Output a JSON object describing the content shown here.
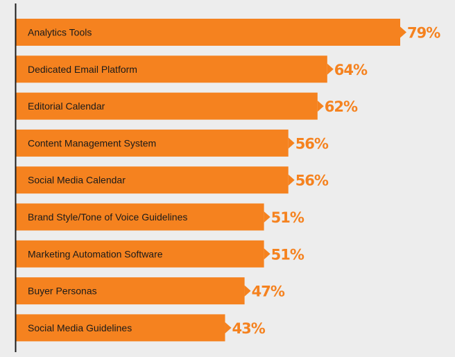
{
  "chart_data": {
    "type": "bar",
    "orientation": "horizontal",
    "categories": [
      "Analytics Tools",
      "Dedicated Email Platform",
      "Editorial Calendar",
      "Content Management System",
      "Social Media Calendar",
      "Brand Style/Tone of Voice Guidelines",
      "Marketing Automation Software",
      "Buyer Personas",
      "Social Media Guidelines"
    ],
    "values": [
      79,
      64,
      62,
      56,
      56,
      51,
      51,
      47,
      43
    ],
    "value_labels": [
      "79%",
      "64%",
      "62%",
      "56%",
      "56%",
      "51%",
      "51%",
      "47%",
      "43%"
    ],
    "xlim": [
      0,
      100
    ],
    "grid": false,
    "legend": "none"
  },
  "colors": {
    "bar": "#f5821f",
    "value_text": "#f5821f",
    "axis": "#1a1a1a",
    "background": "#ededed"
  }
}
